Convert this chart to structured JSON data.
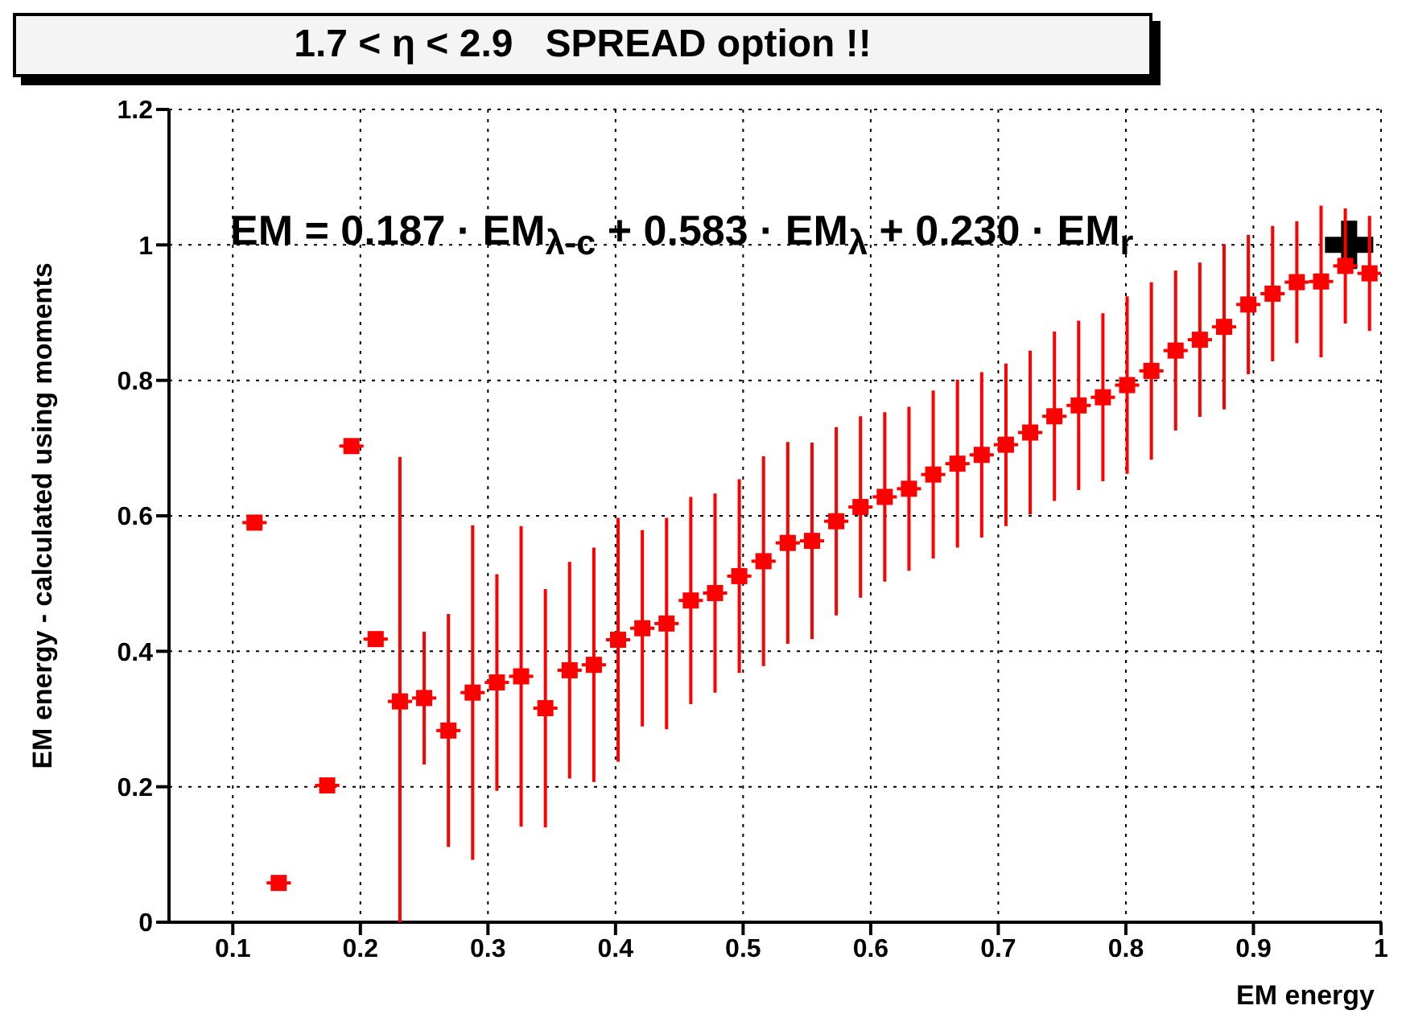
{
  "chart_data": {
    "type": "scatter",
    "title": "1.7 < η < 2.9   SPREAD option !!",
    "xlabel": "EM energy",
    "ylabel": "EM energy - calculated using moments",
    "annotations": [
      "EM = 0.187 · EM$_{λ-c}$ + 0.583 · EM$_{λ}$ + 0.230 · EM$_{r}$"
    ],
    "xlim": [
      0.05,
      1
    ],
    "xticks": [
      0.1,
      0.2,
      0.3,
      0.4,
      0.5,
      0.6,
      0.7,
      0.8,
      0.9,
      1
    ],
    "ylim": [
      0,
      1.2
    ],
    "yticks": [
      0,
      0.2,
      0.4,
      0.6,
      0.8,
      1,
      1.2
    ],
    "grid": true,
    "marker": "square",
    "series": [
      {
        "color": "#ff0000",
        "x": [
          0.117,
          0.136,
          0.174,
          0.193,
          0.212,
          0.231,
          0.25,
          0.269,
          0.288,
          0.307,
          0.326,
          0.345,
          0.364,
          0.383,
          0.402,
          0.421,
          0.44,
          0.459,
          0.478,
          0.497,
          0.516,
          0.535,
          0.554,
          0.573,
          0.592,
          0.611,
          0.63,
          0.649,
          0.668,
          0.687,
          0.706,
          0.725,
          0.744,
          0.763,
          0.782,
          0.801,
          0.82,
          0.839,
          0.858,
          0.877,
          0.896,
          0.915,
          0.934,
          0.953,
          0.972,
          0.991
        ],
        "values": [
          0.59,
          0.058,
          0.202,
          0.703,
          0.418,
          0.326,
          0.331,
          0.283,
          0.339,
          0.354,
          0.363,
          0.316,
          0.372,
          0.38,
          0.417,
          0.434,
          0.441,
          0.475,
          0.486,
          0.511,
          0.533,
          0.56,
          0.563,
          0.592,
          0.613,
          0.628,
          0.64,
          0.661,
          0.677,
          0.69,
          0.705,
          0.723,
          0.747,
          0.763,
          0.775,
          0.793,
          0.814,
          0.844,
          0.86,
          0.879,
          0.912,
          0.928,
          0.945,
          0.946,
          0.969,
          0.958
        ],
        "errors": [
          null,
          null,
          null,
          null,
          null,
          [
            0,
            0.687
          ],
          0.098,
          0.172,
          0.247,
          0.16,
          0.222,
          0.176,
          0.16,
          0.173,
          0.18,
          0.145,
          0.156,
          0.153,
          0.147,
          0.143,
          0.155,
          0.149,
          0.145,
          0.139,
          0.134,
          0.125,
          0.121,
          0.124,
          0.124,
          0.122,
          0.12,
          0.121,
          0.125,
          0.125,
          0.124,
          0.131,
          0.131,
          0.118,
          0.114,
          0.122,
          0.103,
          0.1,
          0.09,
          0.112,
          0.085,
          0.085
        ],
        "xerrors": [
          0.0095,
          0.0095,
          0.0095,
          0.0095,
          0.0095,
          0.0095,
          0.0095,
          0.0095,
          0.0095,
          0.0095,
          0.0095,
          0.0095,
          0.0095,
          0.0095,
          0.0095,
          0.0095,
          0.0095,
          0.0095,
          0.0095,
          0.0095,
          0.0095,
          0.0095,
          0.0095,
          0.0095,
          0.0095,
          0.0095,
          0.0095,
          0.0095,
          0.0095,
          0.0095,
          0.0095,
          0.0095,
          0.0095,
          0.0095,
          0.0095,
          0.0095,
          0.0095,
          0.0095,
          0.0095,
          0.0095,
          0.0095,
          0.0095,
          0.0095,
          0.0095,
          0.0095,
          0.0095
        ]
      },
      {
        "type": "scatter",
        "marker": "cross",
        "color": "#000000",
        "x": [
          0.975
        ],
        "values": [
          1.0
        ]
      }
    ]
  }
}
